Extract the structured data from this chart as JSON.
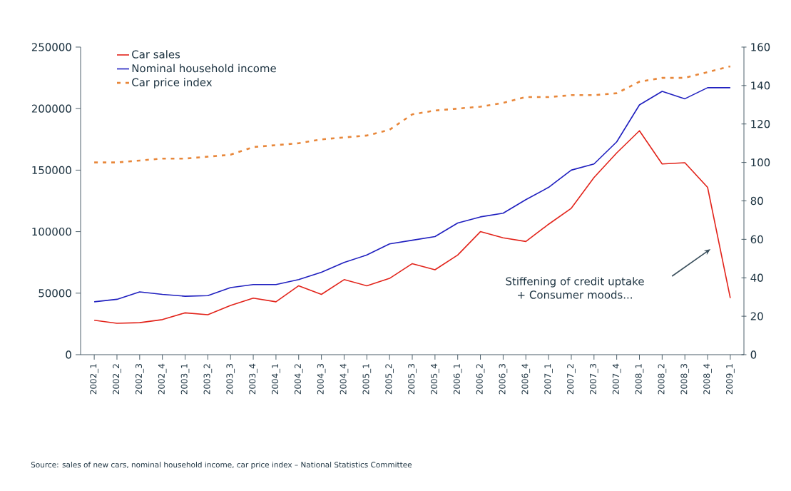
{
  "chart_data": {
    "type": "line",
    "categories": [
      "2002_1",
      "2002_2",
      "2002_3",
      "2002_4",
      "2003_1",
      "2003_2",
      "2003_3",
      "2003_4",
      "2004_1",
      "2004_2",
      "2004_3",
      "2004_4",
      "2005_1",
      "2005_2",
      "2005_3",
      "2005_4",
      "2006_1",
      "2006_2",
      "2006_3",
      "2006_4",
      "2007_1",
      "2007_2",
      "2007_3",
      "2007_4",
      "2008_1",
      "2008_2",
      "2008_3",
      "2008_4",
      "2009_1"
    ],
    "series": [
      {
        "name": "Car sales",
        "color": "#e2231a",
        "line_style": "solid",
        "values": [
          28000,
          25500,
          26000,
          28500,
          34000,
          32500,
          40000,
          46000,
          43000,
          56000,
          49000,
          61000,
          56000,
          62000,
          74000,
          69000,
          81000,
          100000,
          95000,
          92000,
          106000,
          119000,
          144000,
          164000,
          182000,
          155000,
          156000,
          136000,
          46000
        ]
      },
      {
        "name": "Nominal household income",
        "color": "#1f1fbf",
        "line_style": "solid",
        "values": [
          43000,
          45000,
          51000,
          49000,
          47500,
          48000,
          54500,
          57000,
          57000,
          61000,
          67000,
          75000,
          81000,
          90000,
          93000,
          96000,
          107000,
          112000,
          115000,
          126000,
          136000,
          150000,
          155000,
          173000,
          203000,
          214000,
          208000,
          217000,
          217000
        ]
      },
      {
        "name": "Car price index",
        "color": "#e8873a",
        "line_style": "dashed",
        "axis": "y2",
        "values": [
          100,
          100,
          101,
          102,
          102,
          103,
          104,
          108,
          109,
          110,
          112,
          113,
          114,
          117,
          125,
          127,
          128,
          129,
          131,
          134,
          134,
          135,
          135,
          136,
          142,
          144,
          144,
          147,
          150
        ]
      }
    ],
    "ylim": [
      0,
      250000
    ],
    "yticks": [
      0,
      50000,
      100000,
      150000,
      200000,
      250000
    ],
    "y2lim": [
      0,
      160
    ],
    "y2ticks": [
      0,
      20,
      40,
      60,
      80,
      100,
      120,
      140,
      160
    ],
    "legend": "top left",
    "annotations": [
      "Stiffening of credit uptake + Consumer moods...",
      "Source: sales of new cars, nominal household income, car price index – National Statistics Committee"
    ]
  }
}
